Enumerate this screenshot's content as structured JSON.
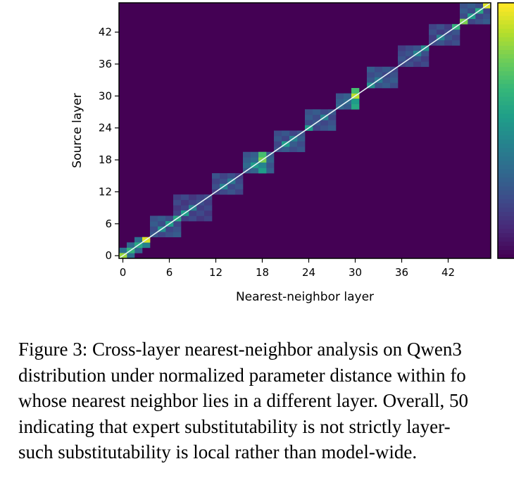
{
  "chart_data": {
    "type": "heatmap",
    "xlabel": "Nearest-neighbor layer",
    "ylabel": "Source layer",
    "x_range": [
      0,
      47
    ],
    "y_range": [
      0,
      47
    ],
    "x_ticks": [
      "0",
      "6",
      "12",
      "18",
      "24",
      "30",
      "36",
      "42"
    ],
    "y_ticks": [
      "0",
      "6",
      "12",
      "18",
      "24",
      "30",
      "36",
      "42"
    ],
    "colormap": "viridis",
    "background_value": 0.0,
    "diagonal_line": true,
    "diagonal_line_color": "#e8f4f8",
    "colorbar": true,
    "blocks": [
      {
        "x": [
          0,
          1
        ],
        "y": [
          0,
          1
        ],
        "value": 0.35
      },
      {
        "x": [
          1,
          2
        ],
        "y": [
          1,
          2
        ],
        "value": 0.3
      },
      {
        "x": [
          2,
          3
        ],
        "y": [
          2,
          3
        ],
        "value": 0.4
      },
      {
        "x": [
          4,
          7
        ],
        "y": [
          4,
          7
        ],
        "value": 0.25
      },
      {
        "x": [
          7,
          11
        ],
        "y": [
          7,
          11
        ],
        "value": 0.2
      },
      {
        "x": [
          12,
          15
        ],
        "y": [
          12,
          15
        ],
        "value": 0.22
      },
      {
        "x": [
          16,
          19
        ],
        "y": [
          16,
          19
        ],
        "value": 0.3
      },
      {
        "x": [
          20,
          23
        ],
        "y": [
          20,
          23
        ],
        "value": 0.25
      },
      {
        "x": [
          24,
          27
        ],
        "y": [
          24,
          27
        ],
        "value": 0.25
      },
      {
        "x": [
          28,
          30
        ],
        "y": [
          28,
          30
        ],
        "value": 0.3
      },
      {
        "x": [
          32,
          35
        ],
        "y": [
          32,
          35
        ],
        "value": 0.25
      },
      {
        "x": [
          36,
          39
        ],
        "y": [
          36,
          39
        ],
        "value": 0.22
      },
      {
        "x": [
          40,
          43
        ],
        "y": [
          40,
          43
        ],
        "value": 0.22
      },
      {
        "x": [
          44,
          47
        ],
        "y": [
          44,
          47
        ],
        "value": 0.25
      }
    ],
    "cells": [
      {
        "x": 0,
        "y": 0,
        "value": 0.85
      },
      {
        "x": 1,
        "y": 1,
        "value": 0.65
      },
      {
        "x": 2,
        "y": 2,
        "value": 0.6
      },
      {
        "x": 3,
        "y": 3,
        "value": 0.95
      },
      {
        "x": 5,
        "y": 5,
        "value": 0.5
      },
      {
        "x": 6,
        "y": 6,
        "value": 0.55
      },
      {
        "x": 7,
        "y": 7,
        "value": 0.6
      },
      {
        "x": 8,
        "y": 8,
        "value": 0.55
      },
      {
        "x": 9,
        "y": 9,
        "value": 0.45
      },
      {
        "x": 13,
        "y": 13,
        "value": 0.45
      },
      {
        "x": 14,
        "y": 14,
        "value": 0.4
      },
      {
        "x": 17,
        "y": 17,
        "value": 0.55
      },
      {
        "x": 18,
        "y": 18,
        "value": 0.8
      },
      {
        "x": 18,
        "y": 19,
        "value": 0.7
      },
      {
        "x": 18,
        "y": 16,
        "value": 0.55
      },
      {
        "x": 18,
        "y": 17,
        "value": 0.45
      },
      {
        "x": 21,
        "y": 21,
        "value": 0.55
      },
      {
        "x": 22,
        "y": 22,
        "value": 0.45
      },
      {
        "x": 24,
        "y": 24,
        "value": 0.55
      },
      {
        "x": 26,
        "y": 26,
        "value": 0.45
      },
      {
        "x": 30,
        "y": 30,
        "value": 0.9
      },
      {
        "x": 30,
        "y": 31,
        "value": 0.7
      },
      {
        "x": 30,
        "y": 28,
        "value": 0.6
      },
      {
        "x": 30,
        "y": 29,
        "value": 0.55
      },
      {
        "x": 32,
        "y": 32,
        "value": 0.5
      },
      {
        "x": 33,
        "y": 33,
        "value": 0.4
      },
      {
        "x": 38,
        "y": 38,
        "value": 0.45
      },
      {
        "x": 39,
        "y": 39,
        "value": 0.5
      },
      {
        "x": 41,
        "y": 41,
        "value": 0.45
      },
      {
        "x": 43,
        "y": 43,
        "value": 0.65
      },
      {
        "x": 44,
        "y": 44,
        "value": 0.8
      },
      {
        "x": 45,
        "y": 45,
        "value": 0.55
      },
      {
        "x": 46,
        "y": 46,
        "value": 0.6
      },
      {
        "x": 47,
        "y": 47,
        "value": 0.95
      }
    ]
  },
  "caption": {
    "lines": [
      "Figure 3: Cross-layer nearest-neighbor analysis on Qwen3",
      "distribution under normalized parameter distance within fo",
      "whose nearest neighbor lies in a different layer. Overall, 50",
      "indicating that expert substitutability is not strictly layer-",
      "such substitutability is local rather than model-wide."
    ]
  }
}
